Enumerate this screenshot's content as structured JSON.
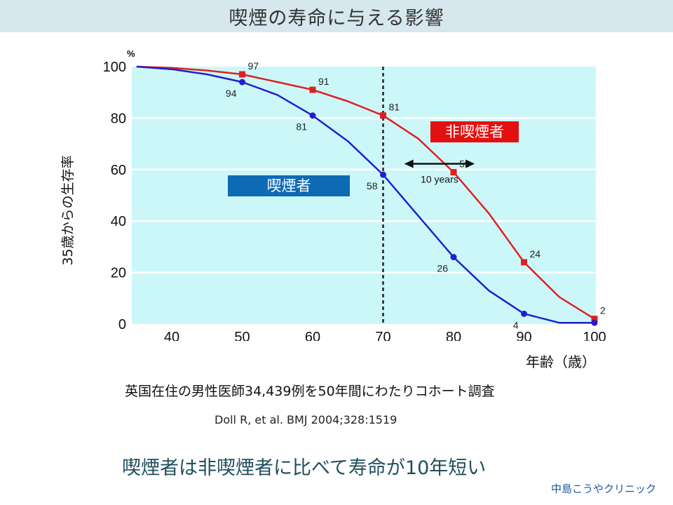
{
  "header": {
    "title": "喫煙の寿命に与える影響"
  },
  "chart_data": {
    "type": "line",
    "ylabel": "35歳からの生存率",
    "yunit": "%",
    "xlabel": "年齢（歳）",
    "xlim": [
      35,
      100
    ],
    "ylim": [
      0,
      100
    ],
    "xticks": [
      40,
      50,
      60,
      70,
      80,
      90,
      100
    ],
    "yticks": [
      0,
      20,
      40,
      60,
      80,
      100
    ],
    "vline": 70,
    "interval_annotation": {
      "from": 73,
      "to": 83,
      "y": 50,
      "label": "10 years"
    },
    "series": [
      {
        "name": "非喫煙者",
        "color": "#e02020",
        "x": [
          35,
          40,
          45,
          50,
          55,
          60,
          65,
          70,
          75,
          80,
          85,
          90,
          95,
          100
        ],
        "y": [
          100,
          99.5,
          98.5,
          97,
          94,
          91,
          86.5,
          81,
          72,
          59,
          43,
          24,
          10.5,
          2
        ],
        "labeled_points": [
          {
            "x": 50,
            "y": 97,
            "label": "97"
          },
          {
            "x": 60,
            "y": 91,
            "label": "91"
          },
          {
            "x": 70,
            "y": 81,
            "label": "81"
          },
          {
            "x": 80,
            "y": 59,
            "label": "59"
          },
          {
            "x": 90,
            "y": 24,
            "label": "24"
          },
          {
            "x": 100,
            "y": 2,
            "label": "2"
          }
        ]
      },
      {
        "name": "喫煙者",
        "color": "#2020d0",
        "x": [
          35,
          40,
          45,
          50,
          55,
          60,
          65,
          70,
          75,
          80,
          85,
          90,
          95,
          100
        ],
        "y": [
          100,
          99,
          97,
          94,
          89,
          81,
          71,
          58,
          42,
          26,
          13,
          4,
          0.5,
          0.5
        ],
        "labeled_points": [
          {
            "x": 50,
            "y": 94,
            "label": "94"
          },
          {
            "x": 60,
            "y": 81,
            "label": "81"
          },
          {
            "x": 70,
            "y": 58,
            "label": "58"
          },
          {
            "x": 80,
            "y": 26,
            "label": "26"
          },
          {
            "x": 90,
            "y": 4,
            "label": "4"
          },
          {
            "x": 100,
            "y": 0.5,
            "label": ""
          }
        ]
      }
    ]
  },
  "legend": {
    "nonsmoker": {
      "text": "非喫煙者",
      "color": "#e31010"
    },
    "smoker": {
      "text": "喫煙者",
      "color": "#0f6ab4"
    }
  },
  "caption": "英国在住の男性医師34,439例を50年間にわたりコホート調査",
  "citation": "Doll R, et al. BMJ 2004;328:1519",
  "conclusion": "喫煙者は非喫煙者に比べて寿命が10年短い",
  "brand": "中島こうやクリニック"
}
